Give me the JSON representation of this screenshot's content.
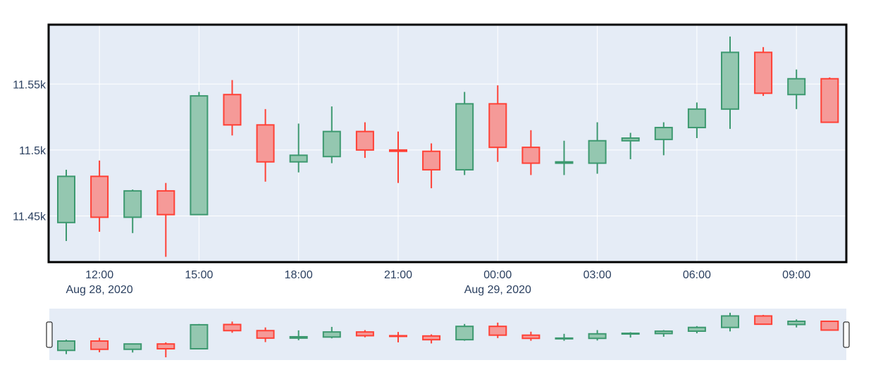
{
  "chart_data": {
    "type": "candlestick",
    "title": "",
    "xlabel": "",
    "ylabel": "",
    "ylim": [
      11415,
      11595
    ],
    "x_start": "2020-08-28T11:00",
    "x_step_hours": 1,
    "y_ticks": [
      {
        "value": 11450,
        "label": "11.45k"
      },
      {
        "value": 11500,
        "label": "11.5k"
      },
      {
        "value": 11550,
        "label": "11.55k"
      }
    ],
    "x_ticks": [
      {
        "hour_offset": 1,
        "label": "12:00",
        "date_label": "Aug 28, 2020"
      },
      {
        "hour_offset": 4,
        "label": "15:00"
      },
      {
        "hour_offset": 7,
        "label": "18:00"
      },
      {
        "hour_offset": 10,
        "label": "21:00"
      },
      {
        "hour_offset": 13,
        "label": "00:00",
        "date_label": "Aug 29, 2020"
      },
      {
        "hour_offset": 16,
        "label": "03:00"
      },
      {
        "hour_offset": 19,
        "label": "06:00"
      },
      {
        "hour_offset": 22,
        "label": "09:00"
      }
    ],
    "colors": {
      "increasing_line": "#3d9970",
      "increasing_fill": "#94c7b0",
      "decreasing_line": "#ff4136",
      "decreasing_fill": "#f59a98",
      "plot_bg": "#e5ecf6",
      "grid": "#ffffff",
      "rangeslider_bg": "#e5ecf6"
    },
    "candles": [
      {
        "time": "2020-08-28 11:00",
        "open": 11445,
        "high": 11485,
        "low": 11431,
        "close": 11480
      },
      {
        "time": "2020-08-28 12:00",
        "open": 11480,
        "high": 11492,
        "low": 11438,
        "close": 11449
      },
      {
        "time": "2020-08-28 13:00",
        "open": 11449,
        "high": 11470,
        "low": 11437,
        "close": 11469
      },
      {
        "time": "2020-08-28 14:00",
        "open": 11469,
        "high": 11475,
        "low": 11419,
        "close": 11451
      },
      {
        "time": "2020-08-28 15:00",
        "open": 11451,
        "high": 11544,
        "low": 11451,
        "close": 11541
      },
      {
        "time": "2020-08-28 16:00",
        "open": 11542,
        "high": 11553,
        "low": 11511,
        "close": 11519
      },
      {
        "time": "2020-08-28 17:00",
        "open": 11519,
        "high": 11531,
        "low": 11476,
        "close": 11491
      },
      {
        "time": "2020-08-28 18:00",
        "open": 11491,
        "high": 11520,
        "low": 11483,
        "close": 11496
      },
      {
        "time": "2020-08-28 19:00",
        "open": 11495,
        "high": 11533,
        "low": 11490,
        "close": 11514
      },
      {
        "time": "2020-08-28 20:00",
        "open": 11514,
        "high": 11521,
        "low": 11494,
        "close": 11500
      },
      {
        "time": "2020-08-28 21:00",
        "open": 11500,
        "high": 11514,
        "low": 11475,
        "close": 11499
      },
      {
        "time": "2020-08-28 22:00",
        "open": 11499,
        "high": 11505,
        "low": 11471,
        "close": 11485
      },
      {
        "time": "2020-08-28 23:00",
        "open": 11485,
        "high": 11544,
        "low": 11481,
        "close": 11535
      },
      {
        "time": "2020-08-29 00:00",
        "open": 11535,
        "high": 11549,
        "low": 11491,
        "close": 11502
      },
      {
        "time": "2020-08-29 01:00",
        "open": 11502,
        "high": 11515,
        "low": 11481,
        "close": 11490
      },
      {
        "time": "2020-08-29 02:00",
        "open": 11490,
        "high": 11507,
        "low": 11481,
        "close": 11491
      },
      {
        "time": "2020-08-29 03:00",
        "open": 11490,
        "high": 11521,
        "low": 11482,
        "close": 11507
      },
      {
        "time": "2020-08-29 04:00",
        "open": 11507,
        "high": 11513,
        "low": 11493,
        "close": 11509
      },
      {
        "time": "2020-08-29 05:00",
        "open": 11508,
        "high": 11521,
        "low": 11496,
        "close": 11517
      },
      {
        "time": "2020-08-29 06:00",
        "open": 11517,
        "high": 11536,
        "low": 11509,
        "close": 11531
      },
      {
        "time": "2020-08-29 07:00",
        "open": 11531,
        "high": 11586,
        "low": 11516,
        "close": 11574
      },
      {
        "time": "2020-08-29 08:00",
        "open": 11574,
        "high": 11578,
        "low": 11541,
        "close": 11543
      },
      {
        "time": "2020-08-29 09:00",
        "open": 11542,
        "high": 11561,
        "low": 11531,
        "close": 11554
      },
      {
        "time": "2020-08-29 10:00",
        "open": 11554,
        "high": 11555,
        "low": 11521,
        "close": 11521
      }
    ],
    "grid": true,
    "legend": "none",
    "rangeslider": true
  }
}
